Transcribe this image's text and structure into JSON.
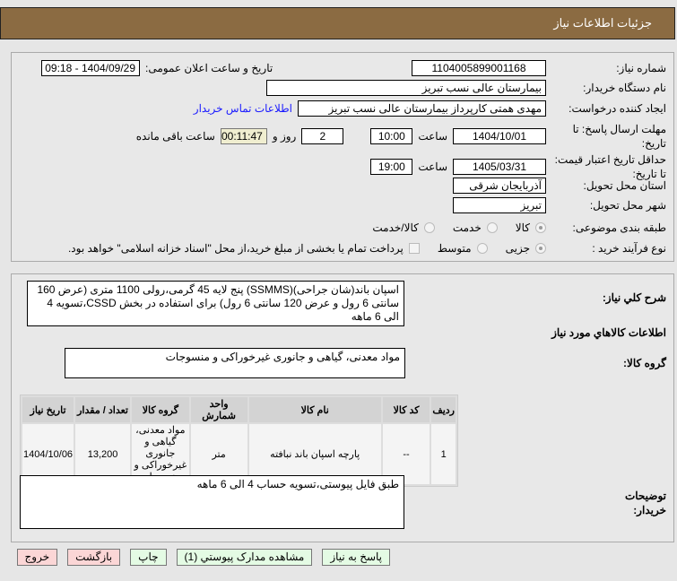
{
  "header": {
    "title": "جزئیات اطلاعات نیاز"
  },
  "form": {
    "need_number_label": "شماره نیاز:",
    "need_number": "1104005899001168",
    "announce_label": "تاریخ و ساعت اعلان عمومی:",
    "announce_value": "1404/09/29 - 09:18",
    "buyer_label": "نام دستگاه خریدار:",
    "buyer": "بیمارستان عالی نسب تبریز",
    "creator_label": "ایجاد کننده درخواست:",
    "creator": "مهدی همتی کارپرداز بیمارستان عالی نسب تبریز",
    "contact_link": "اطلاعات تماس خریدار",
    "deadline_label": "مهلت ارسال پاسخ: تا تاریخ:",
    "deadline_date": "1404/10/01",
    "time_label": "ساعت",
    "deadline_time": "10:00",
    "days": "2",
    "days_label": "روز و",
    "remaining": "00:11:47",
    "remaining_label": "ساعت باقی مانده",
    "validity_label": "حداقل تاریخ اعتبار قیمت: تا تاریخ:",
    "validity_date": "1405/03/31",
    "validity_time": "19:00",
    "province_label": "استان محل تحویل:",
    "province": "آذربایجان شرقی",
    "city_label": "شهر محل تحویل:",
    "city": "تبریز",
    "category_label": "طبقه بندی موضوعی:",
    "category_options": [
      "کالا",
      "خدمت",
      "کالا/خدمت"
    ],
    "category_selected": "کالا",
    "process_label": "نوع فرآیند خرید :",
    "process_options": [
      "جزیی",
      "متوسط"
    ],
    "process_selected": "جزیی",
    "treasury_text": "پرداخت تمام یا بخشی از مبلغ خرید،از محل \"اسناد خزانه اسلامی\" خواهد بود."
  },
  "details": {
    "desc_label": "شرح کلي نياز:",
    "desc": "اسپان باند(شان جراحی)(SSMMS) پنج لایه 45 گرمی،رولی 1100 متری (عرض 160 سانتی 6 رول و عرض 120 سانتی 6 رول) برای استفاده در بخش CSSD،تسویه 4 الی 6 ماهه",
    "goods_title": "اطلاعات کالاهاي مورد نياز",
    "group_label": "گروه کالا:",
    "group": "مواد معدنی، گیاهی و جانوری غیرخوراکی و منسوجات",
    "table": {
      "headers": [
        "ردیف",
        "کد کالا",
        "نام کالا",
        "واحد شمارش",
        "گروه کالا",
        "تعداد / مقدار",
        "تاریخ نیاز"
      ],
      "rows": [
        [
          "1",
          "--",
          "پارچه اسپان باند نبافته",
          "متر",
          "مواد معدنی، گیاهی و جانوری غیرخوراکی و منسوجات",
          "13,200",
          "1404/10/06"
        ]
      ]
    },
    "notes_label": "توضیحات خریدار:",
    "notes": "طبق فایل پیوستی،تسویه حساب 4 الی 6 ماهه"
  },
  "buttons": {
    "reply": "پاسخ به نیاز",
    "attachments": "مشاهده مدارک پیوستي (1)",
    "print": "چاپ",
    "back": "بازگشت",
    "exit": "خروج"
  }
}
